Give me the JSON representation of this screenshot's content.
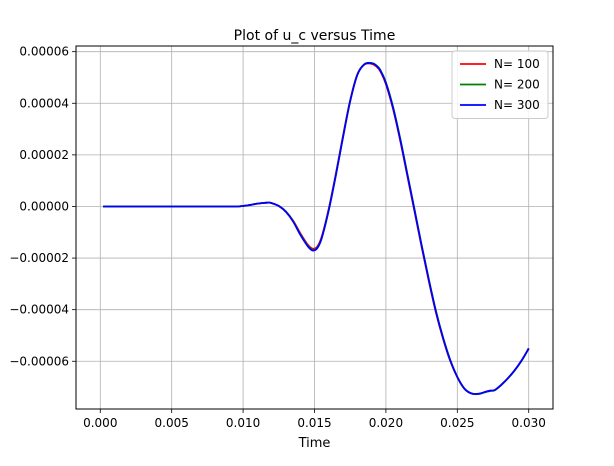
{
  "chart_data": {
    "type": "line",
    "title": "Plot of u_c versus Time",
    "xlabel": "Time",
    "ylabel": "",
    "xlim": [
      -0.0017,
      0.0317
    ],
    "ylim": [
      -7.85e-05,
      6.22e-05
    ],
    "xticks": [
      0.0,
      0.005,
      0.01,
      0.015,
      0.02,
      0.025,
      0.03
    ],
    "xtick_labels": [
      "0.000",
      "0.005",
      "0.010",
      "0.015",
      "0.020",
      "0.025",
      "0.030"
    ],
    "yticks": [
      6e-05,
      4e-05,
      2e-05,
      0.0,
      -2e-05,
      -4e-05,
      -6e-05
    ],
    "ytick_labels": [
      "0.00006",
      "0.00004",
      "0.00002",
      "0.00000",
      "−0.00002",
      "−0.00004",
      "−0.00006"
    ],
    "grid": true,
    "legend_position": "top-right",
    "series": [
      {
        "name": "N= 100",
        "color": "#ff0000",
        "x": [
          0.0002,
          0.002,
          0.004,
          0.006,
          0.008,
          0.0095,
          0.01,
          0.0105,
          0.011,
          0.0115,
          0.0118,
          0.012,
          0.0125,
          0.013,
          0.0135,
          0.014,
          0.0145,
          0.0148,
          0.015,
          0.0152,
          0.0155,
          0.016,
          0.0165,
          0.017,
          0.0175,
          0.018,
          0.0185,
          0.019,
          0.0193,
          0.0196,
          0.02,
          0.0205,
          0.021,
          0.0215,
          0.022,
          0.0225,
          0.023,
          0.0235,
          0.024,
          0.0245,
          0.025,
          0.0255,
          0.026,
          0.0265,
          0.027,
          0.0273,
          0.0276,
          0.028,
          0.0285,
          0.029,
          0.0295,
          0.03
        ],
        "y": [
          0.0,
          0.0,
          0.0,
          0.0,
          0.0,
          0.0,
          2e-07,
          6e-07,
          1.1e-06,
          1.4e-06,
          1.5e-06,
          1.3e-06,
          2e-07,
          -2e-06,
          -5.5e-06,
          -1.03e-05,
          -1.46e-05,
          -1.62e-05,
          -1.63e-05,
          -1.55e-05,
          -1.18e-05,
          -8e-07,
          1.28e-05,
          2.75e-05,
          4.12e-05,
          5.12e-05,
          5.51e-05,
          5.53e-05,
          5.44e-05,
          5.25e-05,
          4.74e-05,
          3.78e-05,
          2.56e-05,
          1.19e-05,
          -1.8e-06,
          -1.56e-05,
          -2.88e-05,
          -4.1e-05,
          -5.12e-05,
          -5.98e-05,
          -6.62e-05,
          -7.07e-05,
          -7.25e-05,
          -7.26e-05,
          -7.18e-05,
          -7.14e-05,
          -7.12e-05,
          -6.95e-05,
          -6.68e-05,
          -6.36e-05,
          -5.97e-05,
          -5.5e-05
        ]
      },
      {
        "name": "N= 200",
        "color": "#008000",
        "x": [
          0.0002,
          0.002,
          0.004,
          0.006,
          0.008,
          0.0095,
          0.01,
          0.0105,
          0.011,
          0.0115,
          0.0118,
          0.012,
          0.0125,
          0.013,
          0.0135,
          0.014,
          0.0145,
          0.0148,
          0.015,
          0.0152,
          0.0155,
          0.016,
          0.0165,
          0.017,
          0.0175,
          0.018,
          0.0185,
          0.019,
          0.0193,
          0.0196,
          0.02,
          0.0205,
          0.021,
          0.0215,
          0.022,
          0.0225,
          0.023,
          0.0235,
          0.024,
          0.0245,
          0.025,
          0.0255,
          0.026,
          0.0265,
          0.027,
          0.0273,
          0.0276,
          0.028,
          0.0285,
          0.029,
          0.0295,
          0.03
        ],
        "y": [
          0.0,
          0.0,
          0.0,
          0.0,
          0.0,
          0.0,
          2e-07,
          6e-07,
          1.1e-06,
          1.4e-06,
          1.5e-06,
          1.3e-06,
          2e-07,
          -2e-06,
          -5.7e-06,
          -1.07e-05,
          -1.5e-05,
          -1.67e-05,
          -1.68e-05,
          -1.59e-05,
          -1.22e-05,
          -1.2e-06,
          1.24e-05,
          2.71e-05,
          4.1e-05,
          5.11e-05,
          5.52e-05,
          5.56e-05,
          5.48e-05,
          5.3e-05,
          4.81e-05,
          3.86e-05,
          2.64e-05,
          1.27e-05,
          -1e-06,
          -1.49e-05,
          -2.81e-05,
          -4.04e-05,
          -5.07e-05,
          -5.94e-05,
          -6.6e-05,
          -7.06e-05,
          -7.25e-05,
          -7.27e-05,
          -7.19e-05,
          -7.15e-05,
          -7.13e-05,
          -6.96e-05,
          -6.69e-05,
          -6.37e-05,
          -5.98e-05,
          -5.51e-05
        ]
      },
      {
        "name": "N= 300",
        "color": "#0000ff",
        "x": [
          0.0002,
          0.002,
          0.004,
          0.006,
          0.008,
          0.0095,
          0.01,
          0.0105,
          0.011,
          0.0115,
          0.0118,
          0.012,
          0.0125,
          0.013,
          0.0135,
          0.014,
          0.0145,
          0.0148,
          0.015,
          0.0152,
          0.0155,
          0.016,
          0.0165,
          0.017,
          0.0175,
          0.018,
          0.0185,
          0.019,
          0.0193,
          0.0196,
          0.02,
          0.0205,
          0.021,
          0.0215,
          0.022,
          0.0225,
          0.023,
          0.0235,
          0.024,
          0.0245,
          0.025,
          0.0255,
          0.026,
          0.0265,
          0.027,
          0.0273,
          0.0276,
          0.028,
          0.0285,
          0.029,
          0.0295,
          0.03
        ],
        "y": [
          0.0,
          0.0,
          0.0,
          0.0,
          0.0,
          0.0,
          2e-07,
          6e-07,
          1.1e-06,
          1.4e-06,
          1.5e-06,
          1.3e-06,
          2e-07,
          -2.1e-06,
          -5.8e-06,
          -1.09e-05,
          -1.52e-05,
          -1.69e-05,
          -1.7e-05,
          -1.61e-05,
          -1.24e-05,
          -1.4e-06,
          1.22e-05,
          2.69e-05,
          4.08e-05,
          5.1e-05,
          5.51e-05,
          5.55e-05,
          5.47e-05,
          5.28e-05,
          4.78e-05,
          3.82e-05,
          2.6e-05,
          1.23e-05,
          -1.4e-06,
          -1.52e-05,
          -2.84e-05,
          -4.07e-05,
          -5.1e-05,
          -5.96e-05,
          -6.61e-05,
          -7.06e-05,
          -7.25e-05,
          -7.26e-05,
          -7.18e-05,
          -7.14e-05,
          -7.12e-05,
          -6.95e-05,
          -6.68e-05,
          -6.36e-05,
          -5.97e-05,
          -5.5e-05
        ]
      }
    ]
  }
}
